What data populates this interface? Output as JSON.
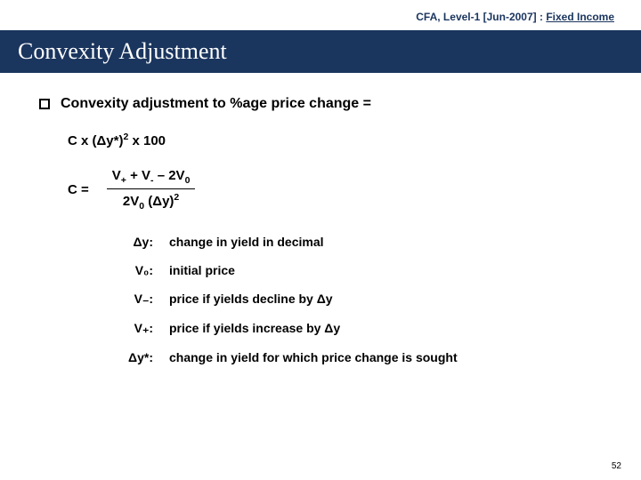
{
  "header": {
    "course": "CFA, Level-1 [Jun-2007] : ",
    "topic": "Fixed Income"
  },
  "title": "Convexity Adjustment",
  "bullet": "Convexity adjustment to %age price change =",
  "formula": {
    "line1_a": "C   x   (Δy*)",
    "line1_exp": "2",
    "line1_b": " x 100",
    "c_label": "C =",
    "num_a": "V",
    "num_sub1": "+",
    "num_b": " + V",
    "num_sub2": "-",
    "num_c": " – 2V",
    "num_sub3": "0",
    "den_a": "2V",
    "den_sub1": "0",
    "den_b": " (Δy)",
    "den_exp": "2"
  },
  "defs": [
    {
      "term": "Δy:",
      "desc": "change in yield in decimal"
    },
    {
      "term": "V₀:",
      "desc": "initial price"
    },
    {
      "term": "V₋:",
      "desc": "price if yields decline by Δy"
    },
    {
      "term": "V₊:",
      "desc": "price if yields increase by Δy"
    },
    {
      "term": "Δy*:",
      "desc": "change in yield for which price change is sought"
    }
  ],
  "pageNumber": "52"
}
